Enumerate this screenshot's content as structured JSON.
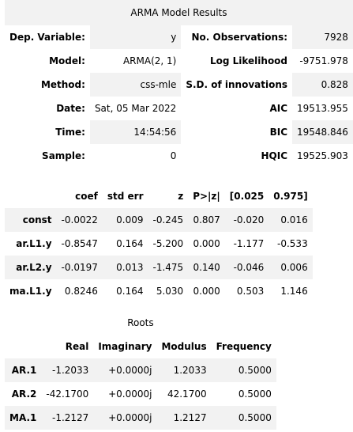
{
  "summary": {
    "title": "ARMA Model Results",
    "rows": [
      {
        "l_label": "Dep. Variable:",
        "l_value": "y",
        "r_label": "No. Observations:",
        "r_value": "7928"
      },
      {
        "l_label": "Model:",
        "l_value": "ARMA(2, 1)",
        "r_label": "Log Likelihood",
        "r_value": "-9751.978"
      },
      {
        "l_label": "Method:",
        "l_value": "css-mle",
        "r_label": "S.D. of innovations",
        "r_value": "0.828"
      },
      {
        "l_label": "Date:",
        "l_value": "Sat, 05 Mar 2022",
        "r_label": "AIC",
        "r_value": "19513.955"
      },
      {
        "l_label": "Time:",
        "l_value": "14:54:56",
        "r_label": "BIC",
        "r_value": "19548.846"
      },
      {
        "l_label": "Sample:",
        "l_value": "0",
        "r_label": "HQIC",
        "r_value": "19525.903"
      }
    ]
  },
  "coefficients": {
    "headers": [
      "",
      "coef",
      "std err",
      "z",
      "P>|z|",
      "[0.025",
      "0.975]"
    ],
    "rows": [
      {
        "name": "const",
        "values": [
          "-0.0022",
          "0.009",
          "-0.245",
          "0.807",
          "-0.020",
          "0.016"
        ]
      },
      {
        "name": "ar.L1.y",
        "values": [
          "-0.8547",
          "0.164",
          "-5.200",
          "0.000",
          "-1.177",
          "-0.533"
        ]
      },
      {
        "name": "ar.L2.y",
        "values": [
          "-0.0197",
          "0.013",
          "-1.475",
          "0.140",
          "-0.046",
          "0.006"
        ]
      },
      {
        "name": "ma.L1.y",
        "values": [
          "0.8246",
          "0.164",
          "5.030",
          "0.000",
          "0.503",
          "1.146"
        ]
      }
    ]
  },
  "roots": {
    "title": "Roots",
    "headers": [
      "",
      "Real",
      "Imaginary",
      "Modulus",
      "Frequency"
    ],
    "rows": [
      {
        "name": "AR.1",
        "values": [
          "-1.2033",
          "+0.0000j",
          "1.2033",
          "0.5000"
        ]
      },
      {
        "name": "AR.2",
        "values": [
          "-42.1700",
          "+0.0000j",
          "42.1700",
          "0.5000"
        ]
      },
      {
        "name": "MA.1",
        "values": [
          "-1.2127",
          "+0.0000j",
          "1.2127",
          "0.5000"
        ]
      }
    ]
  }
}
